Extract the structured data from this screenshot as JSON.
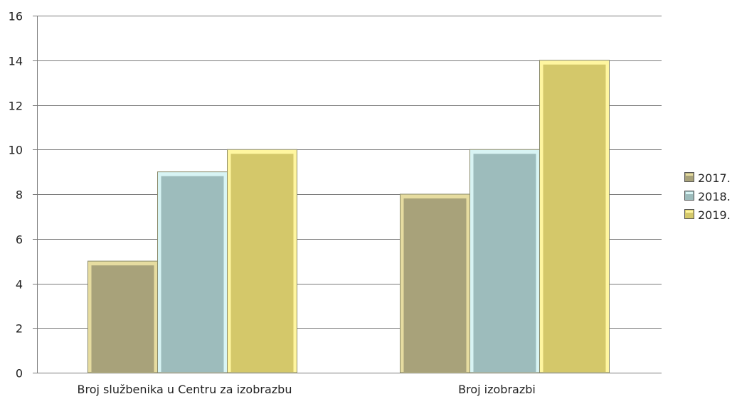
{
  "chart_data": {
    "type": "bar",
    "categories": [
      "Broj službenika u Centru za izobrazbu",
      "Broj izobrazbi"
    ],
    "series": [
      {
        "name": "2017.",
        "values": [
          5,
          8
        ],
        "color": "#a8a27a",
        "border": "#e6dca0"
      },
      {
        "name": "2018.",
        "values": [
          9,
          10
        ],
        "color": "#9dbcbc",
        "border": "#d8f4f4"
      },
      {
        "name": "2019.",
        "values": [
          10,
          14
        ],
        "color": "#d4c86a",
        "border": "#fff6a0"
      }
    ],
    "title": "",
    "xlabel": "",
    "ylabel": "",
    "ylim": [
      0,
      16
    ],
    "yticks": [
      "0",
      "2",
      "4",
      "6",
      "8",
      "10",
      "12",
      "14",
      "16"
    ],
    "grid": true,
    "legend": "right"
  }
}
